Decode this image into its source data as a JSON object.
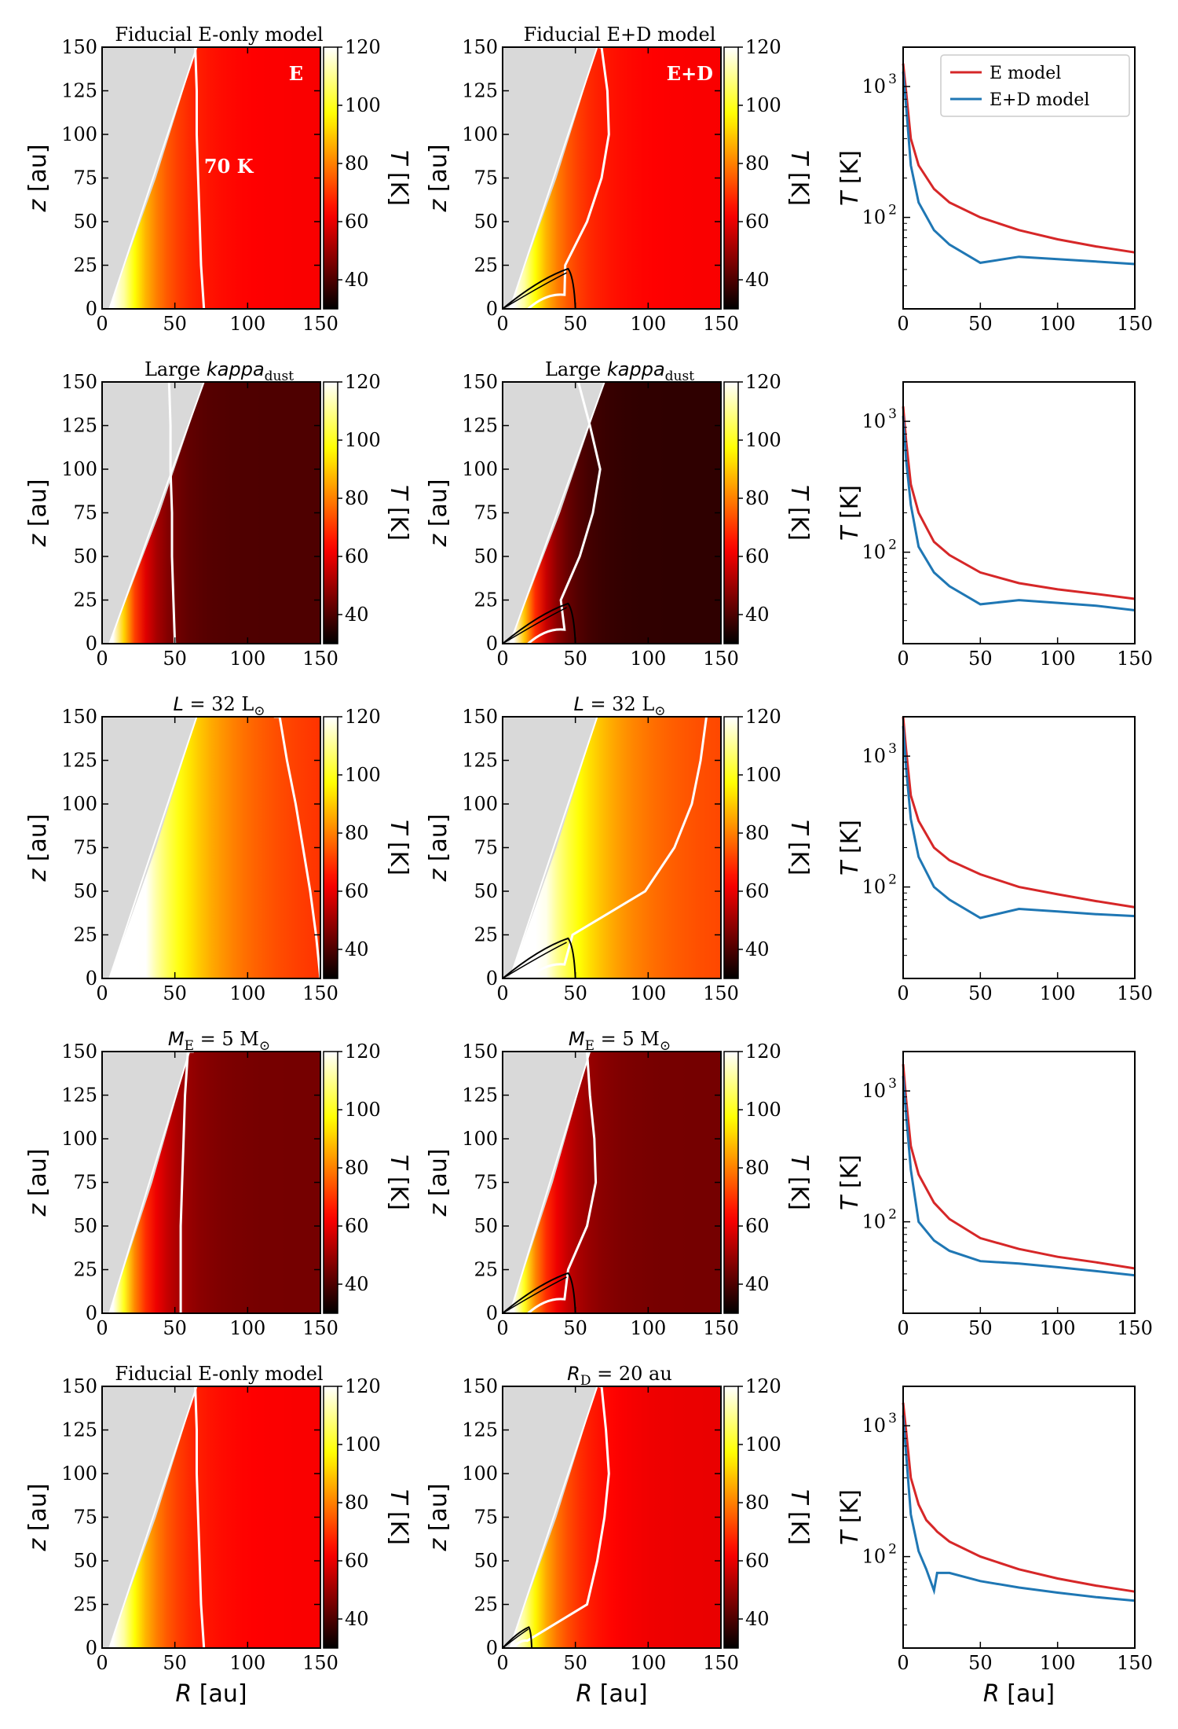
{
  "figure": {
    "colormap_name": "hot",
    "colorbar_label_var": "T",
    "colorbar_label_unit": "[K]",
    "colorbar_ticks": [
      40,
      60,
      80,
      100,
      120
    ],
    "colorbar_range": [
      30,
      120
    ],
    "heatmap_xlabel_var": "R",
    "heatmap_xlabel_unit": "[au]",
    "heatmap_ylabel_var": "z",
    "heatmap_ylabel_unit": "[au]",
    "heatmap_ticks": [
      0,
      50,
      100,
      150
    ],
    "heatmap_yticks": [
      0,
      25,
      50,
      75,
      100,
      125,
      150
    ],
    "line_xlabel_var": "R",
    "line_xlabel_unit": "[au]",
    "line_ylabel_var": "T",
    "line_ylabel_unit": "[K]",
    "line_xticks": [
      0,
      50,
      100,
      150
    ],
    "line_yticks": [
      "10",
      "10"
    ],
    "line_ytick_exponents": [
      "2",
      "3"
    ],
    "legend_e": "E model",
    "legend_ed": "E+D model",
    "colors": {
      "e_model": "#d62728",
      "ed_model": "#1f77b4",
      "gap": "#d9d9d9",
      "contour": "#ffffff",
      "disk_outline": "#000000"
    }
  },
  "chart_data": [
    {
      "row": 1,
      "left_title": "Fiducial E-only model",
      "mid_title": "Fiducial E+D model",
      "left_inset": "E",
      "mid_inset": "E+D",
      "contour_label": "70 K",
      "e_heatmap": {
        "type": "heatmap",
        "x_range": [
          0,
          150
        ],
        "y_range": [
          0,
          150
        ],
        "z_unit": "K",
        "wall_R_at_z0": 5,
        "wall_R_at_z150": 65,
        "inner_T": 120,
        "outer_T": 62,
        "scale_R": 22,
        "contour_70K_R": [
          70,
          68,
          67,
          66,
          65,
          65,
          64,
          63
        ]
      },
      "ed_heatmap": {
        "type": "heatmap",
        "x_range": [
          0,
          150
        ],
        "y_range": [
          0,
          150
        ],
        "z_unit": "K",
        "wall_R_at_z0": 5,
        "wall_R_at_z150": 65,
        "inner_T": 120,
        "outer_T": 62,
        "scale_R": 22,
        "disk_radius": 50,
        "disk_height": 23,
        "contour_70K_R": [
          null,
          43,
          58,
          68,
          73,
          72,
          68,
          66
        ]
      },
      "profile": {
        "type": "line",
        "xlim": [
          0,
          150
        ],
        "ylim_log": [
          20,
          2000
        ],
        "R": [
          0,
          2,
          5,
          10,
          20,
          30,
          50,
          75,
          100,
          125,
          150
        ],
        "T_E": [
          1500,
          900,
          400,
          250,
          165,
          130,
          100,
          80,
          68,
          60,
          54
        ],
        "T_ED": [
          1300,
          700,
          250,
          130,
          80,
          62,
          45,
          50,
          48,
          46,
          44
        ]
      }
    },
    {
      "row": 2,
      "left_title": "Large kappa",
      "mid_title": "Large kappa",
      "title_subscript": "dust",
      "e_heatmap": {
        "type": "heatmap",
        "x_range": [
          0,
          150
        ],
        "y_range": [
          0,
          150
        ],
        "z_unit": "K",
        "wall_R_at_z0": 5,
        "wall_R_at_z150": 70,
        "inner_T": 120,
        "outer_T": 40,
        "scale_R": 15,
        "contour_70K_R": [
          50,
          49,
          48,
          48,
          47,
          47,
          46,
          null
        ]
      },
      "ed_heatmap": {
        "type": "heatmap",
        "x_range": [
          0,
          150
        ],
        "y_range": [
          0,
          150
        ],
        "z_unit": "K",
        "wall_R_at_z0": 5,
        "wall_R_at_z150": 70,
        "inner_T": 120,
        "outer_T": 36,
        "scale_R": 15,
        "disk_radius": 50,
        "disk_height": 23,
        "contour_70K_R": [
          null,
          40,
          53,
          62,
          67,
          60,
          52,
          null
        ]
      },
      "profile": {
        "type": "line",
        "xlim": [
          0,
          150
        ],
        "ylim_log": [
          20,
          2000
        ],
        "R": [
          0,
          2,
          5,
          10,
          20,
          30,
          50,
          75,
          100,
          125,
          150
        ],
        "T_E": [
          1300,
          700,
          330,
          200,
          120,
          95,
          70,
          58,
          52,
          48,
          44
        ],
        "T_ED": [
          1100,
          500,
          230,
          110,
          70,
          55,
          40,
          43,
          41,
          39,
          36
        ]
      }
    },
    {
      "row": 3,
      "left_title": "L = 32 L",
      "mid_title": "L = 32 L",
      "title_subscript": "⊙",
      "e_heatmap": {
        "type": "heatmap",
        "x_range": [
          0,
          150
        ],
        "y_range": [
          0,
          150
        ],
        "z_unit": "K",
        "wall_R_at_z0": 5,
        "wall_R_at_z150": 65,
        "inner_T": 140,
        "outer_T": 66,
        "scale_R": 45,
        "contour_70K_R": [
          150,
          147,
          143,
          138,
          133,
          127,
          122,
          118
        ]
      },
      "ed_heatmap": {
        "type": "heatmap",
        "x_range": [
          0,
          150
        ],
        "y_range": [
          0,
          150
        ],
        "z_unit": "K",
        "wall_R_at_z0": 5,
        "wall_R_at_z150": 65,
        "inner_T": 140,
        "outer_T": 70,
        "scale_R": 40,
        "disk_radius": 50,
        "disk_height": 23,
        "contour_70K_R": [
          null,
          48,
          98,
          118,
          130,
          136,
          140,
          140
        ]
      },
      "profile": {
        "type": "line",
        "xlim": [
          0,
          150
        ],
        "ylim_log": [
          20,
          2000
        ],
        "R": [
          0,
          2,
          5,
          10,
          20,
          30,
          50,
          75,
          100,
          125,
          150
        ],
        "T_E": [
          2000,
          1100,
          500,
          320,
          200,
          160,
          125,
          100,
          88,
          78,
          70
        ],
        "T_ED": [
          1700,
          800,
          330,
          170,
          100,
          80,
          58,
          68,
          65,
          62,
          60
        ]
      }
    },
    {
      "row": 4,
      "left_title": "M = 5 M",
      "mid_title": "M = 5 M",
      "title_var_sub": "E",
      "title_subscript": "⊙",
      "e_heatmap": {
        "type": "heatmap",
        "x_range": [
          0,
          150
        ],
        "y_range": [
          0,
          150
        ],
        "z_unit": "K",
        "wall_R_at_z0": 5,
        "wall_R_at_z150": 60,
        "inner_T": 120,
        "outer_T": 45,
        "scale_R": 18,
        "contour_70K_R": [
          54,
          54,
          54,
          55,
          56,
          57,
          59,
          63
        ]
      },
      "ed_heatmap": {
        "type": "heatmap",
        "x_range": [
          0,
          150
        ],
        "y_range": [
          0,
          150
        ],
        "z_unit": "K",
        "wall_R_at_z0": 5,
        "wall_R_at_z150": 60,
        "inner_T": 120,
        "outer_T": 45,
        "scale_R": 18,
        "disk_radius": 50,
        "disk_height": 23,
        "contour_70K_R": [
          null,
          45,
          58,
          64,
          63,
          60,
          58,
          60
        ]
      },
      "profile": {
        "type": "line",
        "xlim": [
          0,
          150
        ],
        "ylim_log": [
          20,
          2000
        ],
        "R": [
          0,
          2,
          5,
          10,
          20,
          30,
          50,
          75,
          100,
          125,
          150
        ],
        "T_E": [
          1600,
          850,
          380,
          230,
          140,
          105,
          75,
          62,
          54,
          49,
          44
        ],
        "T_ED": [
          1300,
          650,
          250,
          100,
          72,
          60,
          50,
          48,
          45,
          42,
          39
        ]
      }
    },
    {
      "row": 5,
      "left_title": "Fiducial E-only model",
      "mid_title": "R = 20 au",
      "mid_title_var_sub": "D",
      "e_heatmap": {
        "type": "heatmap",
        "x_range": [
          0,
          150
        ],
        "y_range": [
          0,
          150
        ],
        "z_unit": "K",
        "wall_R_at_z0": 5,
        "wall_R_at_z150": 65,
        "inner_T": 120,
        "outer_T": 62,
        "scale_R": 22,
        "contour_70K_R": [
          70,
          68,
          67,
          66,
          65,
          65,
          64,
          63
        ]
      },
      "ed_heatmap": {
        "type": "heatmap",
        "x_range": [
          0,
          150
        ],
        "y_range": [
          0,
          150
        ],
        "z_unit": "K",
        "wall_R_at_z0": 5,
        "wall_R_at_z150": 65,
        "inner_T": 120,
        "outer_T": 60,
        "scale_R": 22,
        "disk_radius": 20,
        "disk_height": 12,
        "contour_70K_R": [
          null,
          58,
          65,
          70,
          73,
          71,
          68,
          66
        ]
      },
      "profile": {
        "type": "line",
        "xlim": [
          0,
          150
        ],
        "ylim_log": [
          20,
          2000
        ],
        "R": [
          0,
          2,
          5,
          10,
          15,
          20,
          22,
          30,
          50,
          75,
          100,
          125,
          150
        ],
        "T_E": [
          1500,
          900,
          400,
          250,
          190,
          165,
          155,
          130,
          100,
          80,
          68,
          60,
          54
        ],
        "T_ED": [
          1200,
          600,
          210,
          110,
          80,
          55,
          75,
          75,
          65,
          58,
          53,
          49,
          46
        ]
      }
    }
  ]
}
